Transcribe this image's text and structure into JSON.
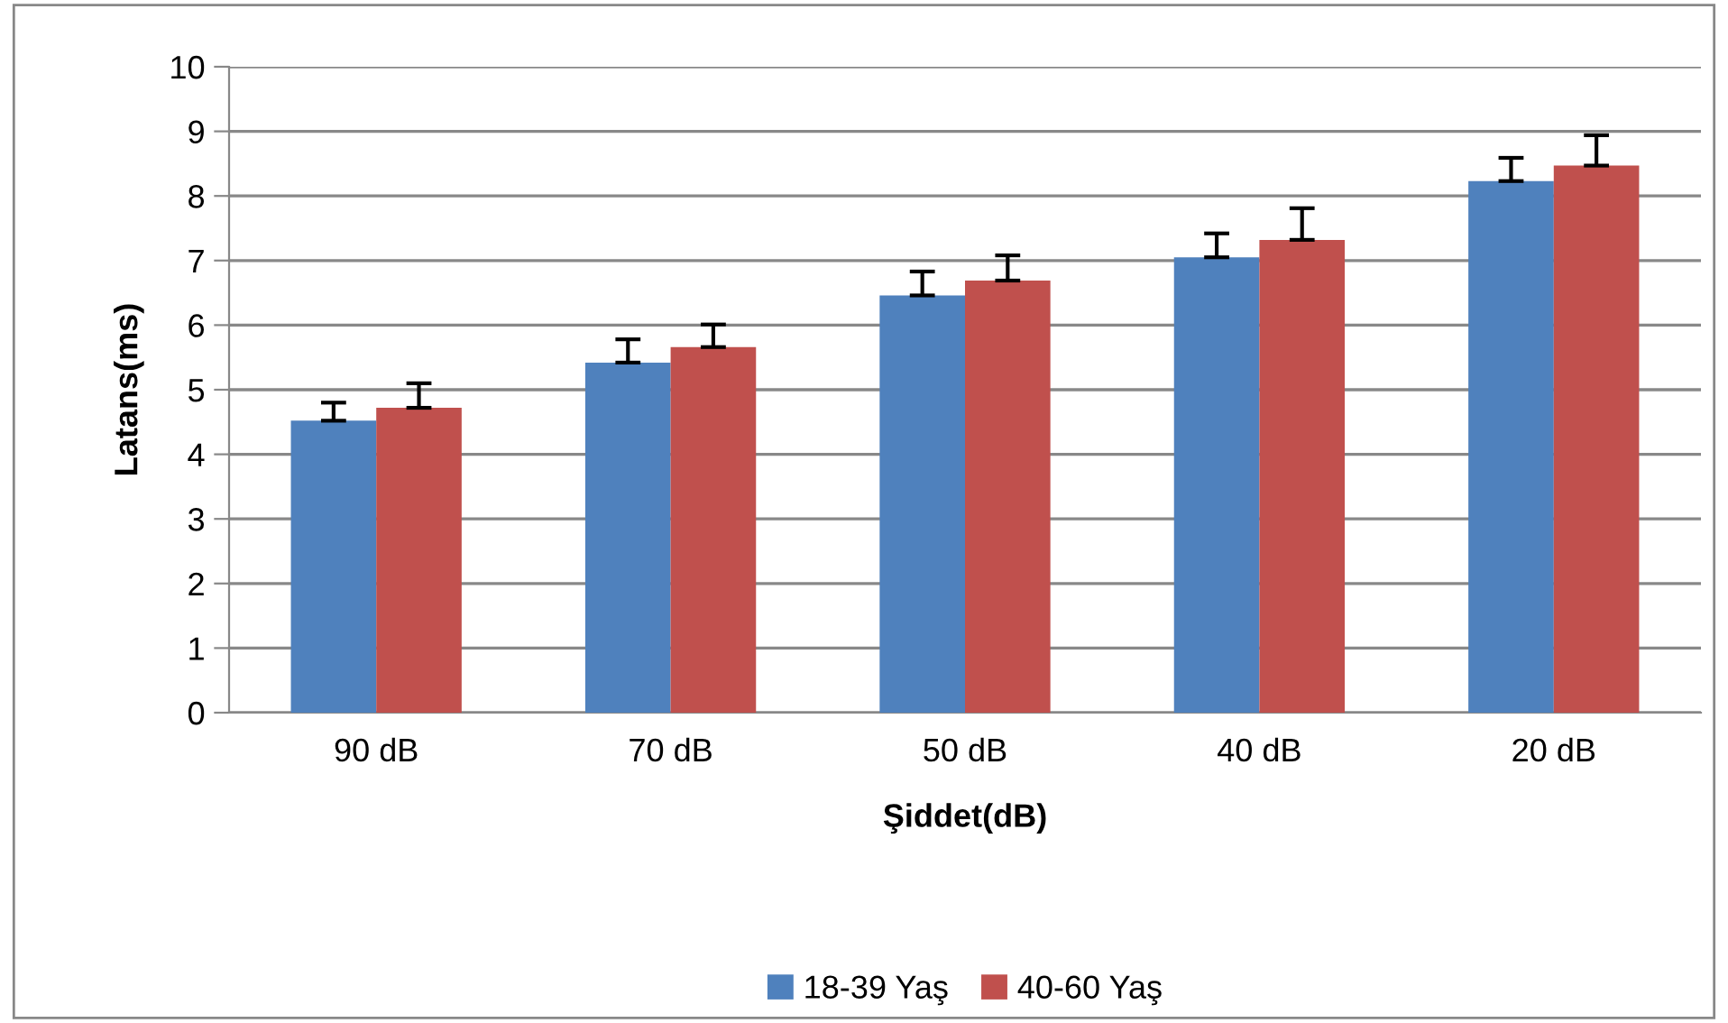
{
  "chart_data": {
    "type": "bar",
    "xlabel": "Şiddet(dB)",
    "ylabel": "Latans(ms)",
    "categories": [
      "90 dB",
      "70 dB",
      "50 dB",
      "40 dB",
      "20 dB"
    ],
    "series": [
      {
        "name": "18-39 Yaş",
        "color": "#4f81bd",
        "values": [
          4.52,
          5.42,
          6.46,
          7.05,
          8.23
        ],
        "errors": [
          [
            4.52,
            4.8
          ],
          [
            5.42,
            5.78
          ],
          [
            6.46,
            6.83
          ],
          [
            7.05,
            7.42
          ],
          [
            8.23,
            8.59
          ]
        ]
      },
      {
        "name": "40-60 Yaş",
        "color": "#c0504d",
        "values": [
          4.72,
          5.66,
          6.69,
          7.32,
          8.47
        ],
        "errors": [
          [
            4.72,
            5.1
          ],
          [
            5.66,
            6.01
          ],
          [
            6.69,
            7.08
          ],
          [
            7.32,
            7.81
          ],
          [
            8.47,
            8.94
          ]
        ]
      }
    ],
    "ylim": [
      0,
      10
    ],
    "yticks": [
      0,
      1,
      2,
      3,
      4,
      5,
      6,
      7,
      8,
      9,
      10
    ],
    "grid": "y",
    "legend": "bottom"
  }
}
